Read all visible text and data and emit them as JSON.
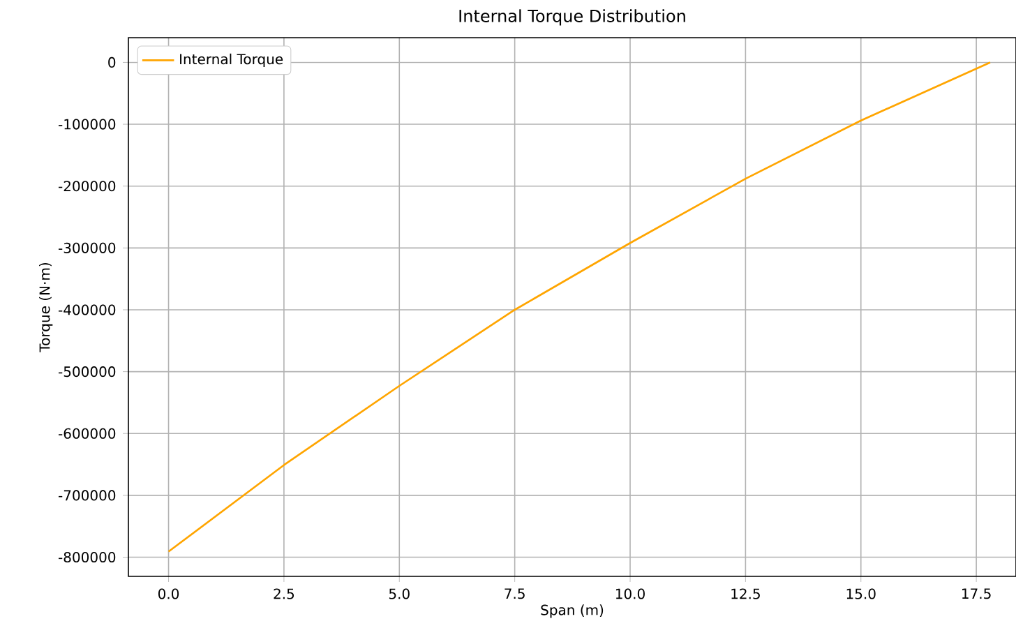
{
  "chart_data": {
    "type": "line",
    "title": "Internal Torque Distribution",
    "xlabel": "Span (m)",
    "ylabel": "Torque (N·m)",
    "series": [
      {
        "name": "Internal Torque",
        "color": "#ffa500",
        "x": [
          0,
          2.5,
          5,
          7.5,
          10,
          12.5,
          15,
          17.8
        ],
        "values": [
          -791000,
          -651000,
          -523000,
          -400000,
          -292000,
          -188000,
          -94000,
          0
        ]
      }
    ],
    "xlim": [
      -0.87,
      18.36
    ],
    "ylim": [
      -831000,
      40000
    ],
    "xticks": [
      {
        "value": 0,
        "label": "0.0"
      },
      {
        "value": 2.5,
        "label": "2.5"
      },
      {
        "value": 5,
        "label": "5.0"
      },
      {
        "value": 7.5,
        "label": "7.5"
      },
      {
        "value": 10,
        "label": "10.0"
      },
      {
        "value": 12.5,
        "label": "12.5"
      },
      {
        "value": 15,
        "label": "15.0"
      },
      {
        "value": 17.5,
        "label": "17.5"
      }
    ],
    "yticks": [
      0,
      -100000,
      -200000,
      -300000,
      -400000,
      -500000,
      -600000,
      -700000,
      -800000
    ],
    "grid": true,
    "legend": "top left",
    "marker": "none",
    "line_style": "solid"
  }
}
